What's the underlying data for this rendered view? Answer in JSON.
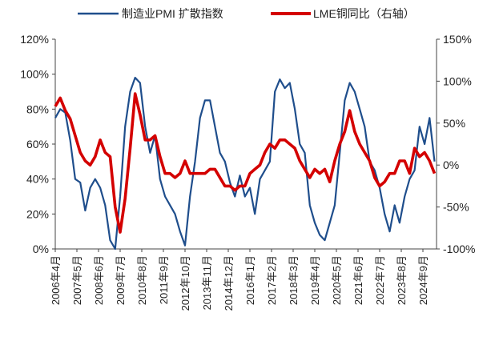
{
  "chart_data": {
    "type": "line",
    "title": "",
    "legend_placement": "top",
    "x_tick_labels": [
      "2006年4月",
      "2007年5月",
      "2008年6月",
      "2009年7月",
      "2010年8月",
      "2011年9月",
      "2012年10月",
      "2013年11月",
      "2014年12月",
      "2016年1月",
      "2017年2月",
      "2018年3月",
      "2019年4月",
      "2020年5月",
      "2021年6月",
      "2022年7月",
      "2023年8月",
      "2024年9月"
    ],
    "y_left": {
      "ticks": [
        "0%",
        "20%",
        "40%",
        "60%",
        "80%",
        "100%",
        "120%"
      ],
      "range": [
        0,
        120
      ]
    },
    "y_right": {
      "ticks": [
        "-100%",
        "-50%",
        "0%",
        "50%",
        "100%",
        "150%"
      ],
      "range": [
        -100,
        150
      ]
    },
    "x": [
      "2006-04",
      "2006-07",
      "2006-10",
      "2007-01",
      "2007-04",
      "2007-07",
      "2007-10",
      "2008-01",
      "2008-04",
      "2008-07",
      "2008-10",
      "2009-01",
      "2009-04",
      "2009-07",
      "2009-10",
      "2010-01",
      "2010-04",
      "2010-07",
      "2010-10",
      "2011-01",
      "2011-04",
      "2011-07",
      "2011-10",
      "2012-01",
      "2012-04",
      "2012-07",
      "2012-10",
      "2013-01",
      "2013-04",
      "2013-07",
      "2013-10",
      "2014-01",
      "2014-04",
      "2014-07",
      "2014-10",
      "2015-01",
      "2015-04",
      "2015-07",
      "2015-10",
      "2016-01",
      "2016-04",
      "2016-07",
      "2016-10",
      "2017-01",
      "2017-04",
      "2017-07",
      "2017-10",
      "2018-01",
      "2018-04",
      "2018-07",
      "2018-10",
      "2019-01",
      "2019-04",
      "2019-07",
      "2019-10",
      "2020-01",
      "2020-04",
      "2020-07",
      "2020-10",
      "2021-01",
      "2021-04",
      "2021-07",
      "2021-10",
      "2022-01",
      "2022-04",
      "2022-07",
      "2022-10",
      "2023-01",
      "2023-04",
      "2023-07",
      "2023-10",
      "2024-01",
      "2024-04",
      "2024-07",
      "2024-10",
      "2025-01",
      "2025-04"
    ],
    "series": [
      {
        "name": "制造业PMI 扩散指数",
        "axis": "left",
        "color": "#1f4e8c",
        "values": [
          75,
          80,
          78,
          62,
          40,
          38,
          22,
          35,
          40,
          35,
          25,
          5,
          0,
          30,
          70,
          90,
          98,
          95,
          70,
          55,
          65,
          40,
          30,
          25,
          20,
          10,
          2,
          30,
          50,
          75,
          85,
          85,
          70,
          55,
          50,
          38,
          30,
          42,
          30,
          35,
          20,
          40,
          45,
          50,
          90,
          97,
          92,
          95,
          80,
          60,
          55,
          25,
          15,
          8,
          5,
          15,
          25,
          55,
          85,
          95,
          90,
          80,
          70,
          50,
          45,
          35,
          20,
          10,
          25,
          15,
          30,
          40,
          45,
          70,
          60,
          75,
          50
        ]
      },
      {
        "name": "LME铜同比（右轴）",
        "axis": "right",
        "color": "#d40000",
        "values": [
          70,
          80,
          65,
          55,
          35,
          15,
          5,
          0,
          10,
          30,
          15,
          10,
          -50,
          -80,
          -40,
          20,
          85,
          60,
          30,
          30,
          35,
          10,
          -10,
          -10,
          -15,
          -10,
          5,
          -10,
          -10,
          -10,
          -10,
          -5,
          -5,
          -15,
          -25,
          -25,
          -30,
          -25,
          -25,
          -10,
          -5,
          0,
          15,
          25,
          20,
          30,
          30,
          25,
          20,
          5,
          -5,
          -15,
          -5,
          -10,
          -5,
          -20,
          5,
          25,
          40,
          65,
          40,
          25,
          15,
          5,
          -15,
          -25,
          -20,
          -10,
          -10,
          5,
          5,
          -10,
          20,
          10,
          15,
          5,
          -10
        ]
      }
    ]
  }
}
